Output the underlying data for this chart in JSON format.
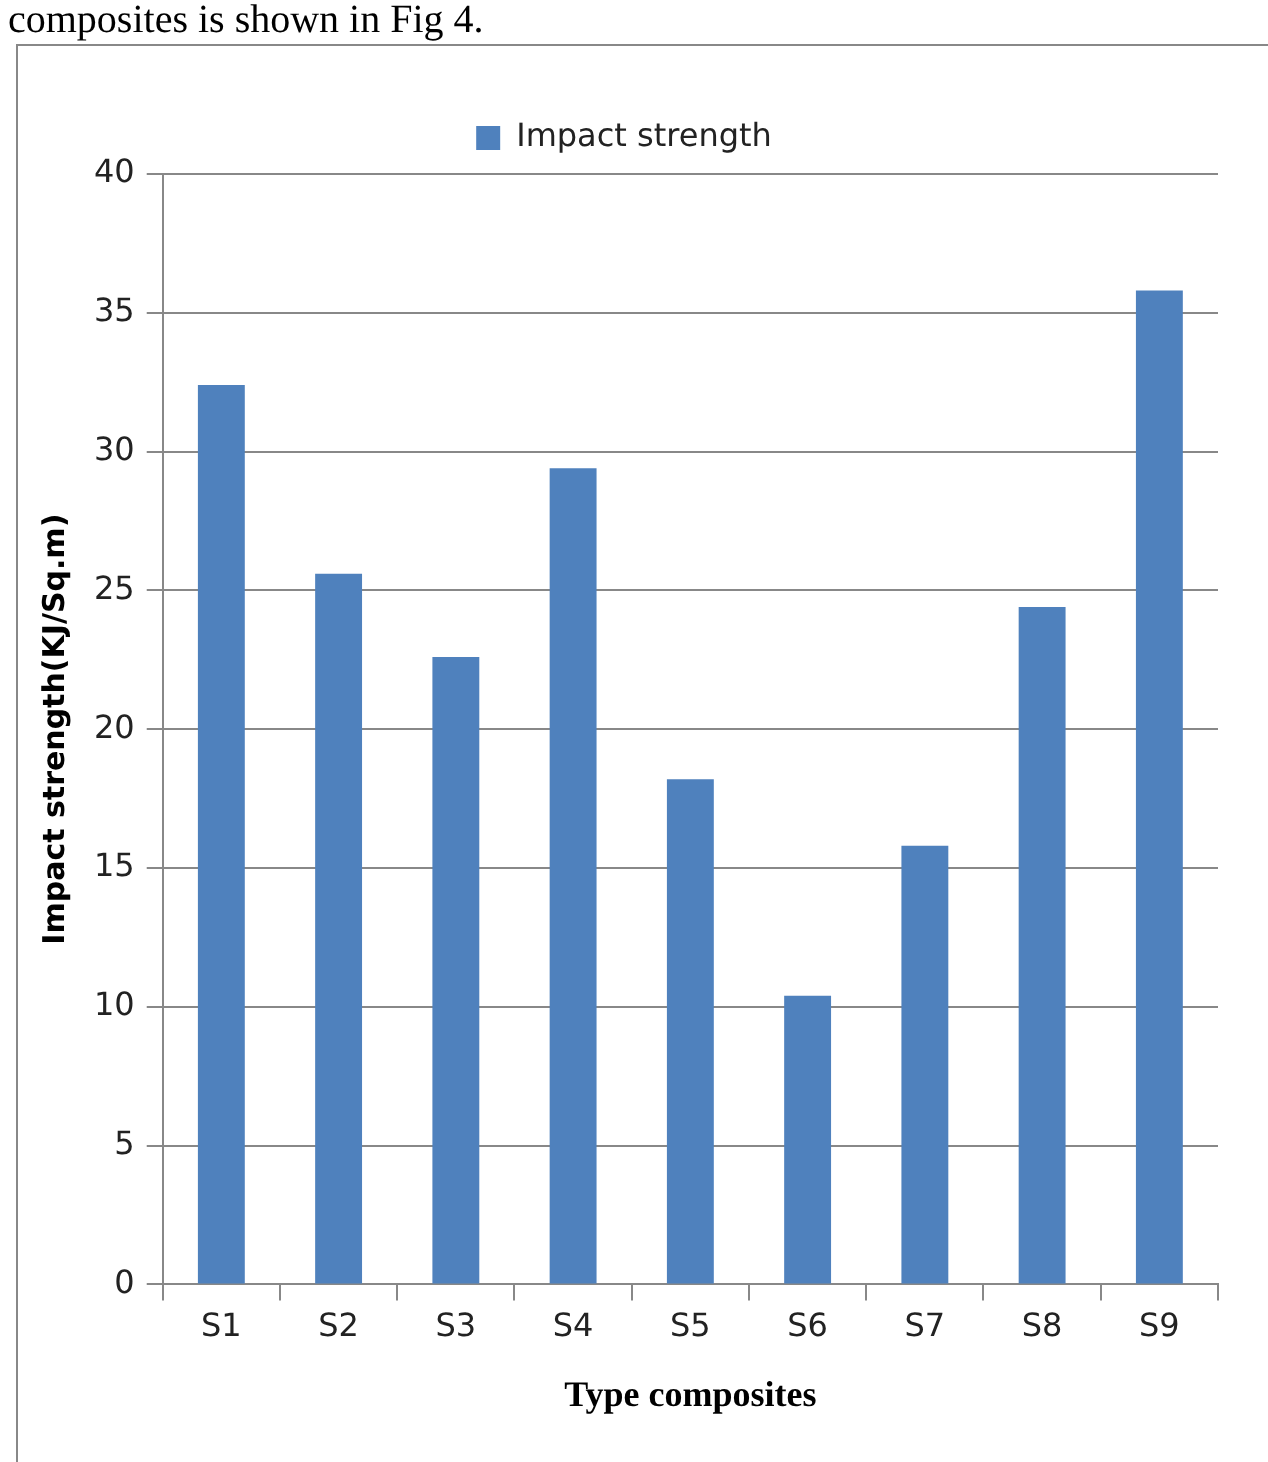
{
  "chart_data": {
    "type": "bar",
    "xlabel": "Type composites",
    "ylabel": "Impact strength(KJ/Sq.m)",
    "annotations": [
      "composites is shown in Fig 4."
    ],
    "categories": [
      "S1",
      "S2",
      "S3",
      "S4",
      "S5",
      "S6",
      "S7",
      "S8",
      "S9"
    ],
    "series": [
      {
        "name": "Impact strength",
        "color": "#4f81bd",
        "values": [
          32.4,
          25.6,
          22.6,
          29.4,
          18.2,
          10.4,
          15.8,
          24.4,
          35.8
        ]
      }
    ],
    "ylim": [
      0,
      40
    ],
    "yticks": [
      0,
      5,
      10,
      15,
      20,
      25,
      30,
      35,
      40
    ],
    "grid": "y",
    "legend": "top"
  }
}
